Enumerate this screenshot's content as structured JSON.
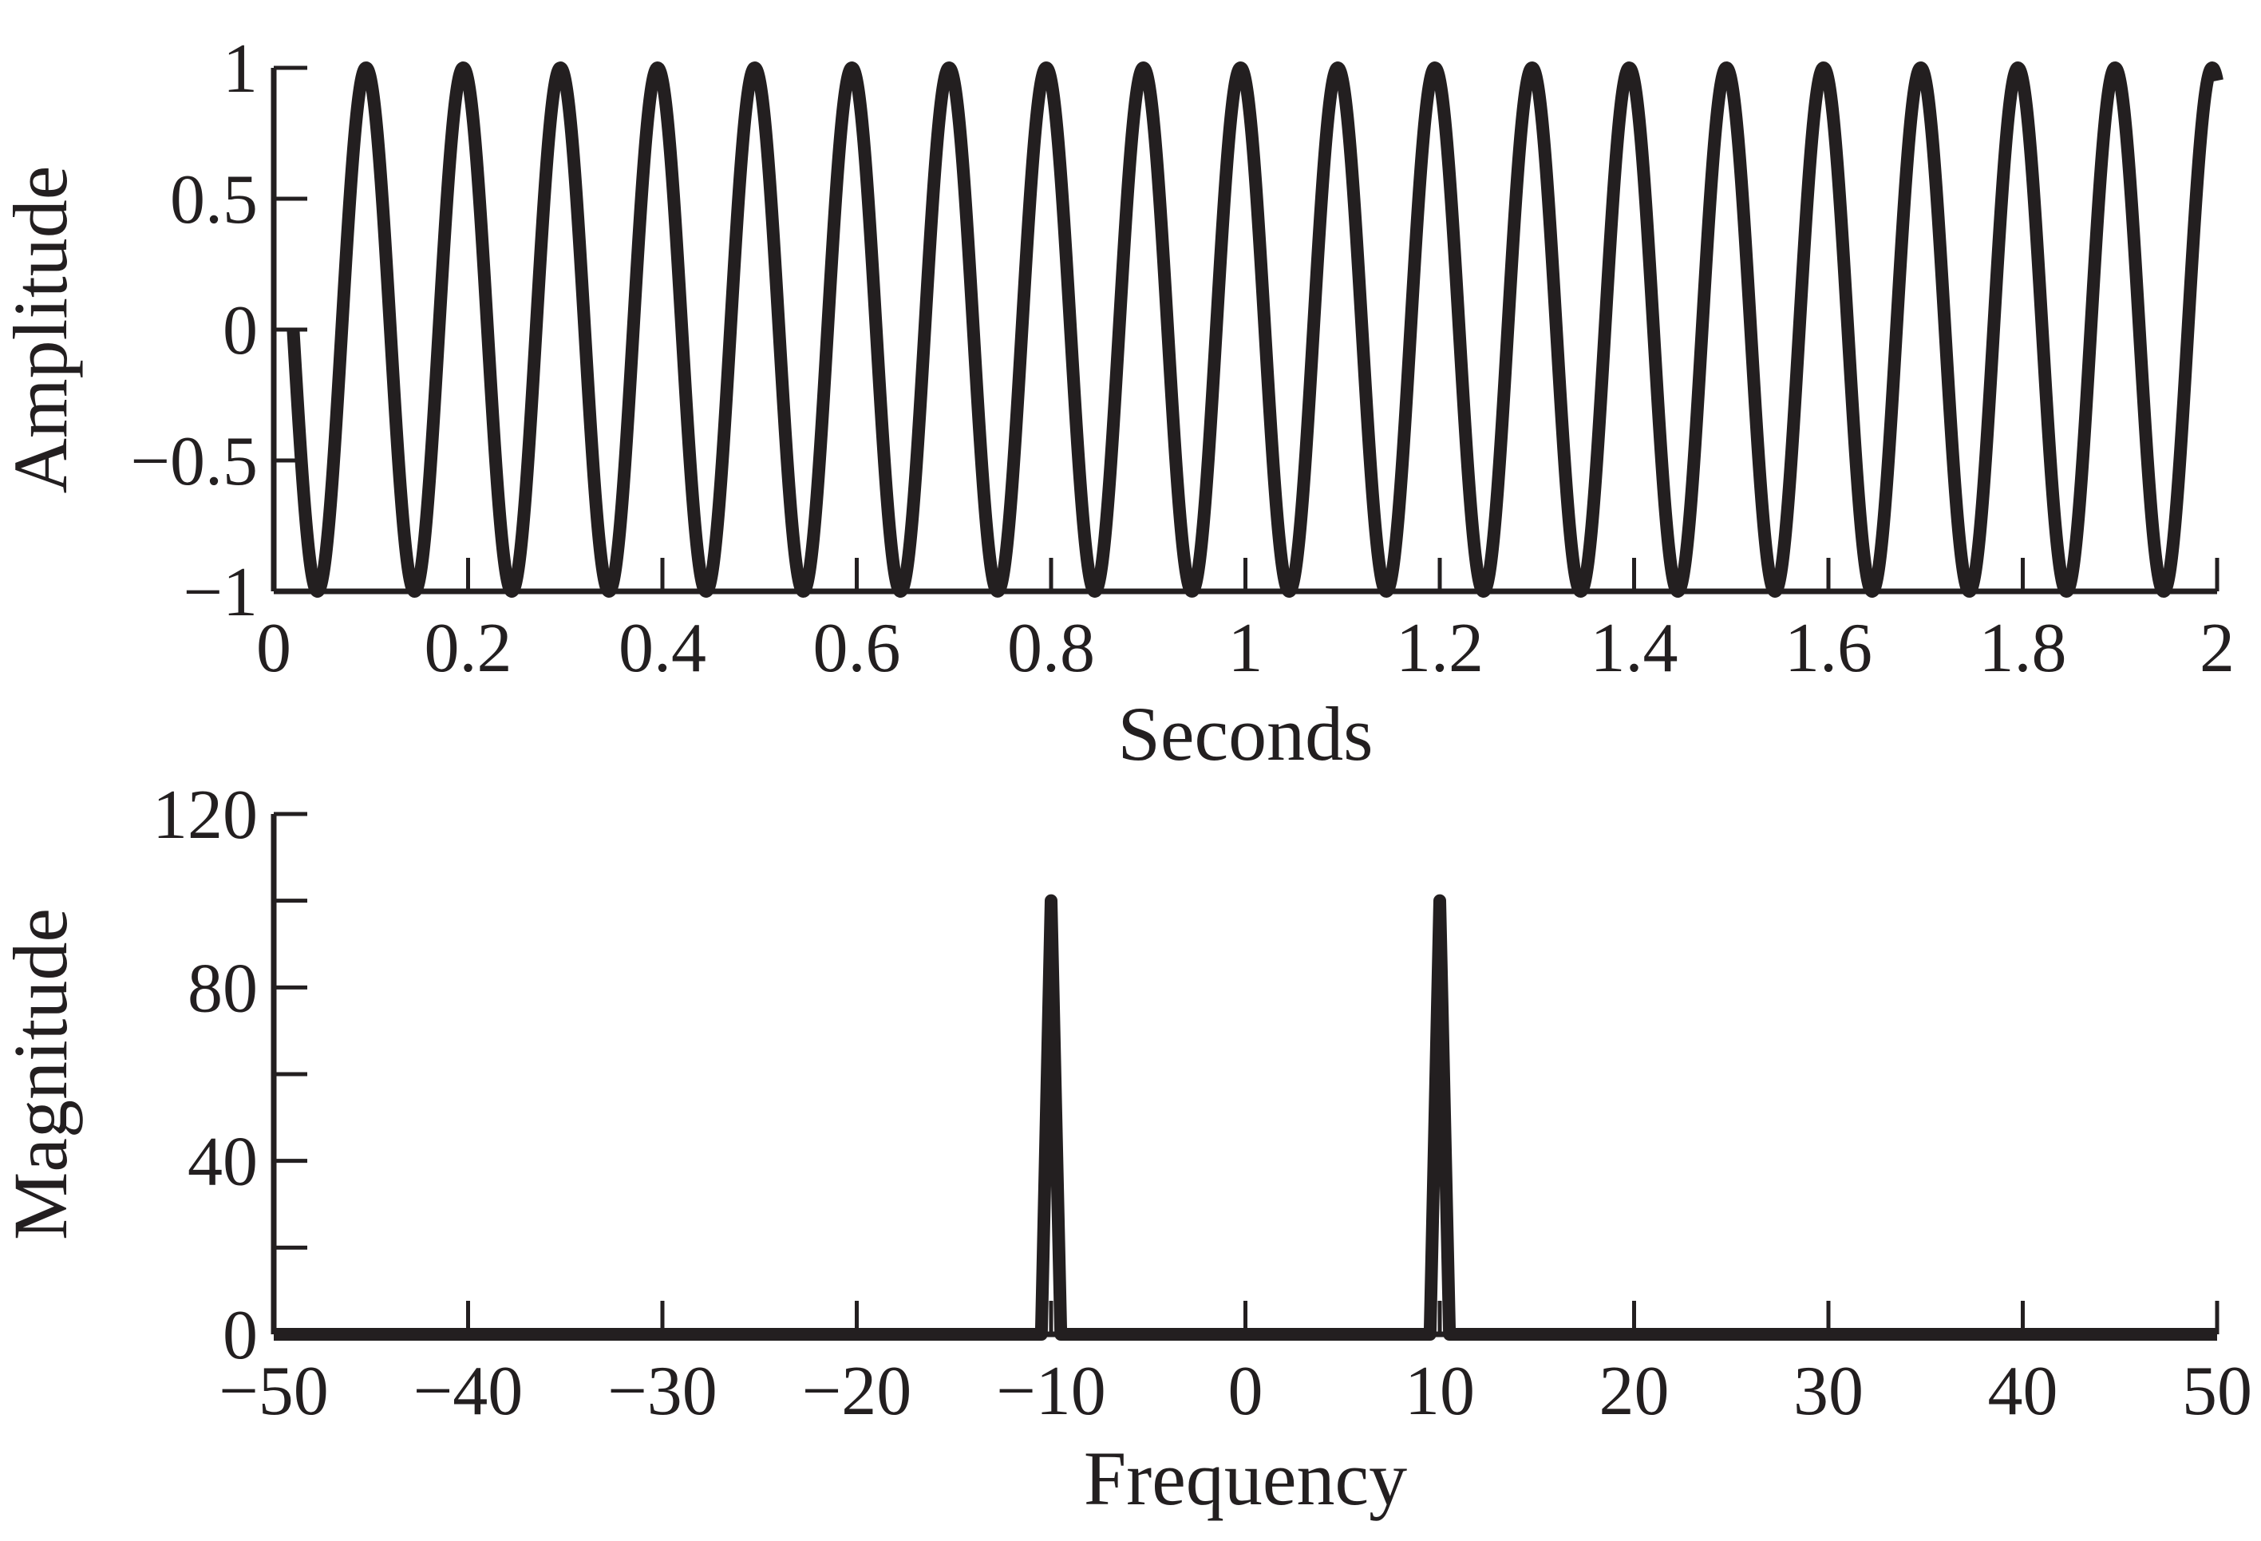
{
  "colors": {
    "line": "#231f20",
    "background": "#ffffff"
  },
  "chart_data": [
    {
      "type": "line",
      "title": "",
      "xlabel": "Seconds",
      "ylabel": "Amplitude",
      "xlim": [
        0,
        2
      ],
      "ylim": [
        -1,
        1
      ],
      "xticks": [
        0,
        0.2,
        0.4,
        0.6,
        0.8,
        1,
        1.2,
        1.4,
        1.6,
        1.8,
        2
      ],
      "xtick_labels": [
        "0",
        "0.2",
        "0.4",
        "0.6",
        "0.8",
        "1",
        "1.2",
        "1.4",
        "1.6",
        "1.8",
        "2"
      ],
      "yticks": [
        -1,
        -0.5,
        0,
        0.5,
        1
      ],
      "ytick_labels": [
        "−1",
        "−0.5",
        "0",
        "0.5",
        "1"
      ],
      "grid": false,
      "series": [
        {
          "function": "sine",
          "frequency_hz": 10,
          "amplitude": 1,
          "x_range": [
            0.02,
            2
          ]
        }
      ]
    },
    {
      "type": "line",
      "title": "",
      "xlabel": "Frequency",
      "ylabel": "Magnitude",
      "xlim": [
        -50,
        50
      ],
      "ylim": [
        0,
        120
      ],
      "xticks": [
        -50,
        -40,
        -30,
        -20,
        -10,
        0,
        10,
        20,
        30,
        40,
        50
      ],
      "xtick_labels": [
        "−50",
        "−40",
        "−30",
        "−20",
        "−10",
        "0",
        "10",
        "20",
        "30",
        "40",
        "50"
      ],
      "yticks": [
        0,
        20,
        40,
        60,
        80,
        100,
        120
      ],
      "ytick_labels": [
        "0",
        "",
        "40",
        "",
        "80",
        "",
        "120"
      ],
      "grid": false,
      "series": [
        {
          "x": [
            -50,
            -10.5,
            -10,
            -9.5,
            9.5,
            10,
            10.5,
            50
          ],
          "y": [
            0,
            0,
            100,
            0,
            0,
            100,
            0,
            0
          ]
        }
      ]
    }
  ]
}
